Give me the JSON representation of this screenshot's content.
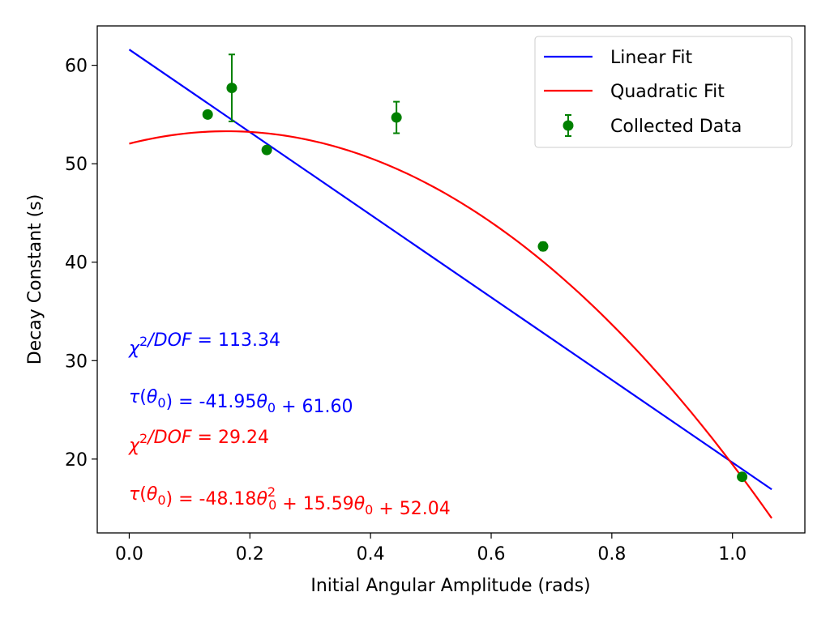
{
  "chart_data": {
    "type": "scatter",
    "xlabel": "Initial Angular Amplitude (rads)",
    "ylabel": "Decay Constant (s)",
    "xlim": [
      -0.053,
      1.12
    ],
    "ylim": [
      12.5,
      64
    ],
    "xticks": [
      0.0,
      0.2,
      0.4,
      0.6,
      0.8,
      1.0
    ],
    "xtick_labels": [
      "0.0",
      "0.2",
      "0.4",
      "0.6",
      "0.8",
      "1.0"
    ],
    "yticks": [
      20,
      30,
      40,
      50,
      60
    ],
    "ytick_labels": [
      "20",
      "30",
      "40",
      "50",
      "60"
    ],
    "grid": false,
    "legend_position": "top-right",
    "series": [
      {
        "name": "Linear Fit",
        "kind": "line",
        "color": "#0000ff",
        "slope": -41.95,
        "intercept": 61.6,
        "x_range": [
          0,
          1.065
        ]
      },
      {
        "name": "Quadratic Fit",
        "kind": "line",
        "color": "#ff0000",
        "a": -48.18,
        "b": 15.59,
        "c": 52.04,
        "x_range": [
          0,
          1.065
        ]
      },
      {
        "name": "Collected Data",
        "kind": "errorbar",
        "color": "#008000",
        "points": [
          {
            "x": 0.13,
            "y": 55.0,
            "err": 0.3
          },
          {
            "x": 0.17,
            "y": 57.7,
            "err": 3.4
          },
          {
            "x": 0.228,
            "y": 51.4,
            "err": 0.3
          },
          {
            "x": 0.443,
            "y": 54.7,
            "err": 1.6
          },
          {
            "x": 0.686,
            "y": 41.6,
            "err": 0.4
          },
          {
            "x": 1.016,
            "y": 18.2,
            "err": 0.3
          }
        ]
      }
    ],
    "annotations": [
      {
        "color": "#0000ff",
        "parts": [
          {
            "t": "χ",
            "m": 1
          },
          {
            "t": "2",
            "sup": 1
          },
          {
            "t": "/DOF",
            "m": 1
          },
          {
            "t": " =  113.34"
          }
        ]
      },
      {
        "color": "#0000ff",
        "parts": [
          {
            "t": "τ",
            "m": 1
          },
          {
            "t": "("
          },
          {
            "t": "θ",
            "m": 1
          },
          {
            "t": "0",
            "sub": 1
          },
          {
            "t": ") =  -41.95"
          },
          {
            "t": "θ",
            "m": 1
          },
          {
            "t": "0",
            "sub": 1
          },
          {
            "t": " +  61.60"
          }
        ]
      },
      {
        "color": "#ff0000",
        "parts": [
          {
            "t": "χ",
            "m": 1
          },
          {
            "t": "2",
            "sup": 1
          },
          {
            "t": "/DOF",
            "m": 1
          },
          {
            "t": " =  29.24"
          }
        ]
      },
      {
        "color": "#ff0000",
        "parts": [
          {
            "t": "τ",
            "m": 1
          },
          {
            "t": "("
          },
          {
            "t": "θ",
            "m": 1
          },
          {
            "t": "0",
            "sub": 1
          },
          {
            "t": ") =  -48.18"
          },
          {
            "t": "θ",
            "m": 1
          },
          {
            "t": "2",
            "supsub": "0"
          },
          {
            "t": " +  15.59"
          },
          {
            "t": "θ",
            "m": 1
          },
          {
            "t": "0",
            "sub": 1
          },
          {
            "t": " +  52.04"
          }
        ]
      }
    ]
  }
}
